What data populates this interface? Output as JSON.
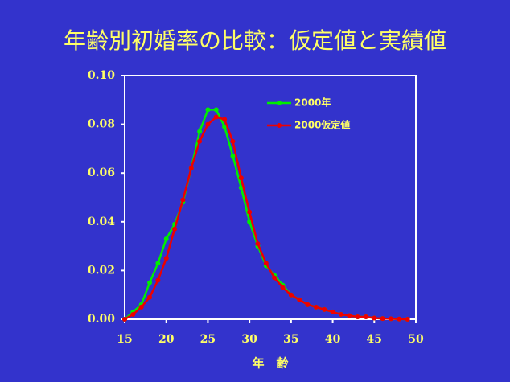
{
  "chart_data": {
    "type": "line",
    "title": "年齢別初婚率の比較：仮定値と実績値",
    "x_label": "年　齢",
    "x": [
      15,
      16,
      17,
      18,
      19,
      20,
      21,
      22,
      23,
      24,
      25,
      26,
      27,
      28,
      29,
      30,
      31,
      32,
      33,
      34,
      35,
      36,
      37,
      38,
      39,
      40,
      41,
      42,
      43,
      44,
      45,
      46,
      47,
      48,
      49
    ],
    "series": [
      {
        "name": "2000年",
        "color": "#00ee00",
        "values": [
          0,
          0.003,
          0.006,
          0.015,
          0.023,
          0.033,
          0.039,
          0.048,
          0.062,
          0.077,
          0.086,
          0.086,
          0.079,
          0.067,
          0.054,
          0.04,
          0.03,
          0.022,
          0.018,
          0.014,
          0.01,
          0.008,
          0.006,
          0.005,
          0.004,
          0.003,
          0.002,
          0.0015,
          0.001,
          0.001,
          0.0005,
          0.0003,
          0.0002,
          0.0001,
          0
        ]
      },
      {
        "name": "2000仮定値",
        "color": "#ee0000",
        "values": [
          0,
          0.002,
          0.005,
          0.009,
          0.016,
          0.025,
          0.037,
          0.049,
          0.062,
          0.073,
          0.08,
          0.083,
          0.082,
          0.073,
          0.058,
          0.044,
          0.031,
          0.023,
          0.017,
          0.013,
          0.01,
          0.008,
          0.006,
          0.005,
          0.004,
          0.003,
          0.002,
          0.0015,
          0.001,
          0.001,
          0.0005,
          0.0003,
          0.0002,
          0.0001,
          0
        ]
      }
    ],
    "xlim": [
      15,
      50
    ],
    "xticks": [
      15,
      20,
      25,
      30,
      35,
      40,
      45,
      50
    ],
    "ylim": [
      0,
      0.1
    ],
    "yticks": [
      {
        "value": 0,
        "label": "0.00"
      },
      {
        "value": 0.02,
        "label": "0.02"
      },
      {
        "value": 0.04,
        "label": "0.04"
      },
      {
        "value": 0.06,
        "label": "0.06"
      },
      {
        "value": 0.08,
        "label": "0.08"
      },
      {
        "value": 0.1,
        "label": "0.10"
      }
    ],
    "legend": "upper-right",
    "grid": false
  }
}
